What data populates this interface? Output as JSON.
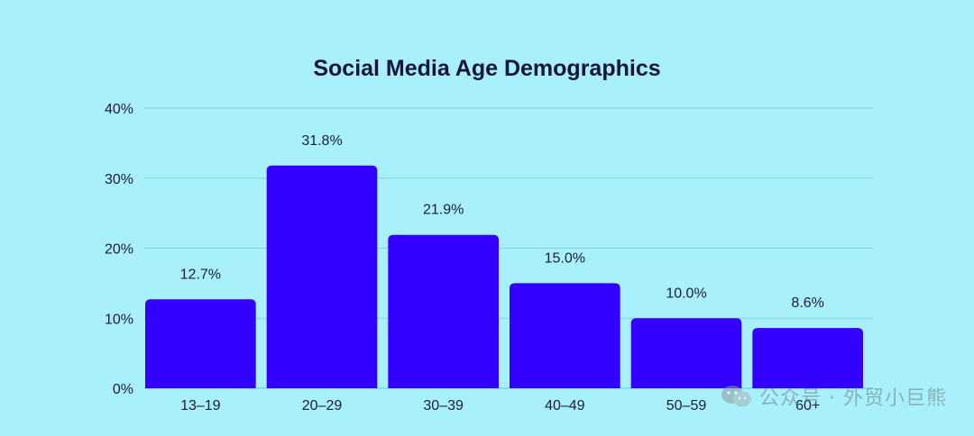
{
  "chart_data": {
    "type": "bar",
    "title": "Social Media Age Demographics",
    "categories": [
      "13–19",
      "20–29",
      "30–39",
      "40–49",
      "50–59",
      "60+"
    ],
    "values": [
      12.7,
      31.8,
      21.9,
      15.0,
      10.0,
      8.6
    ],
    "data_labels": [
      "12.7%",
      "31.8%",
      "21.9%",
      "15.0%",
      "10.0%",
      "8.6%"
    ],
    "yticks": [
      0,
      10,
      20,
      30,
      40
    ],
    "ytick_labels": [
      "0%",
      "10%",
      "20%",
      "30%",
      "40%"
    ],
    "ylim": [
      0,
      40
    ],
    "xlabel": "",
    "ylabel": "",
    "grid": true,
    "bar_color": "#3300ff"
  },
  "watermark": {
    "icon": "wechat-icon",
    "text": "公众号 · 外贸小巨熊"
  }
}
